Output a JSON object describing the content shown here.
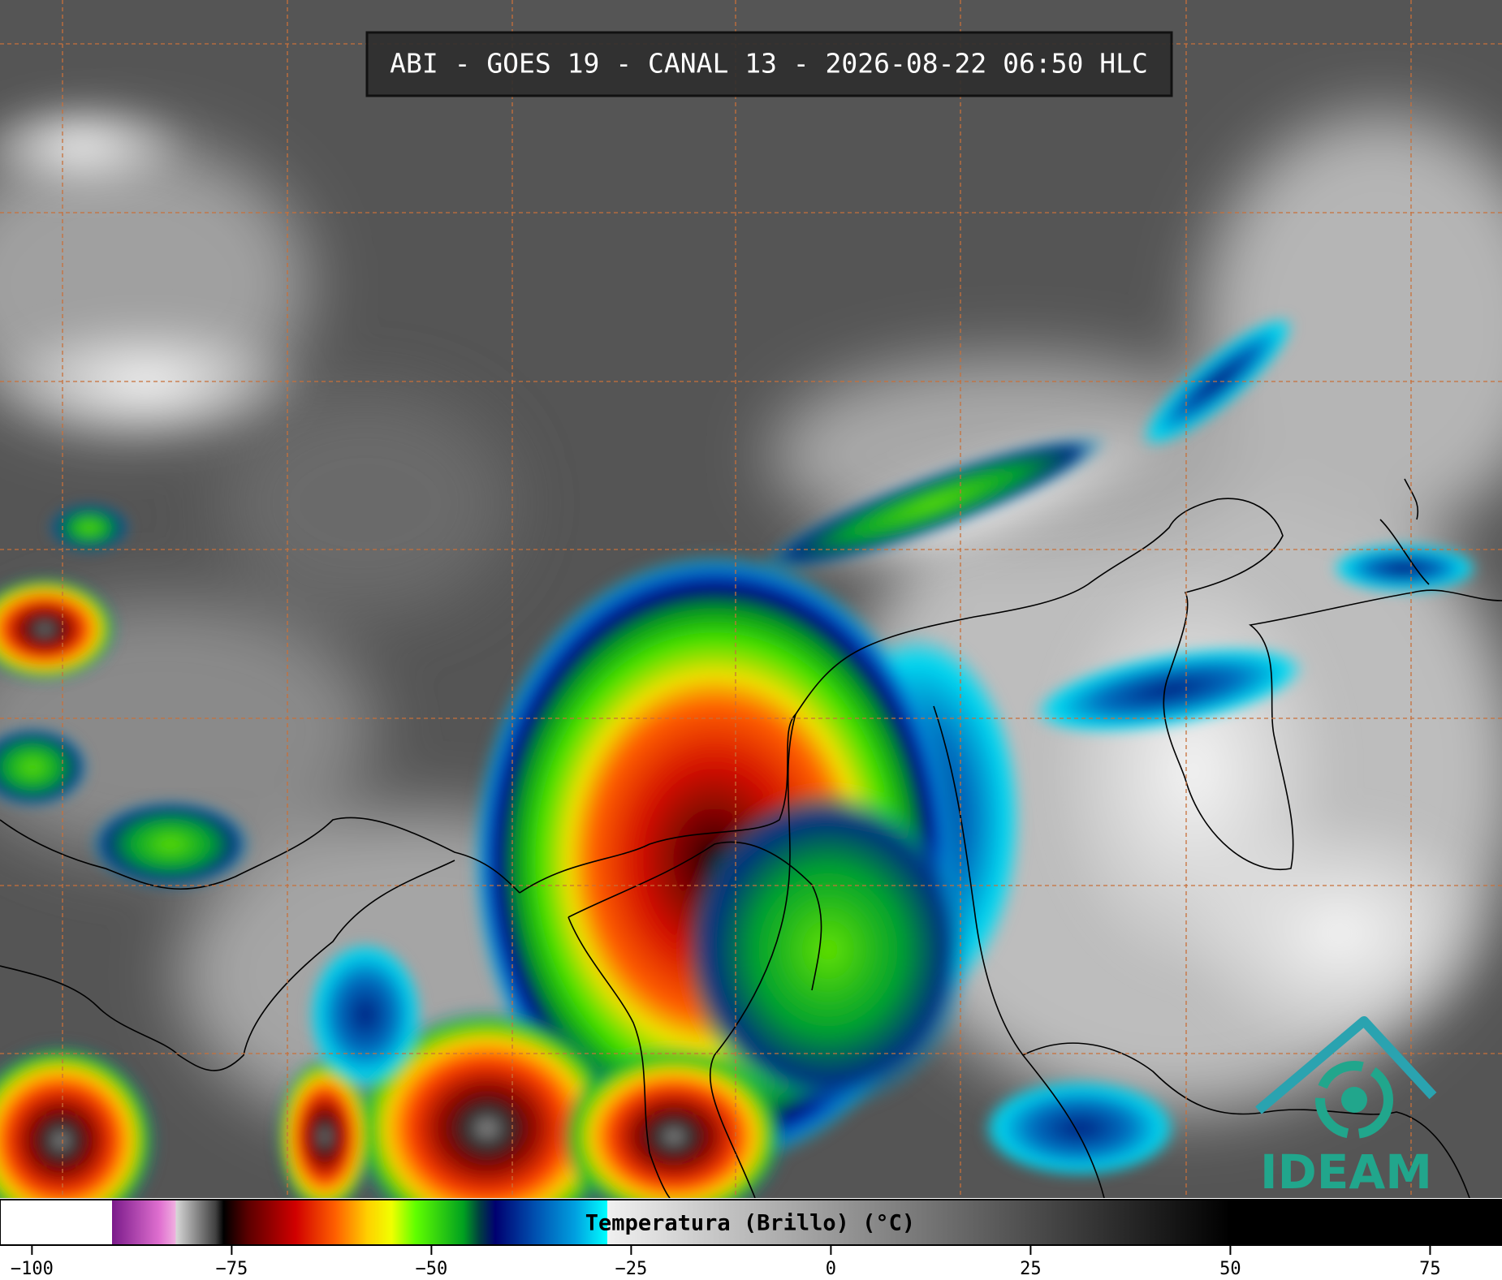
{
  "header": {
    "title": "ABI - GOES 19 - CANAL 13 - 2026-08-22 06:50 HLC"
  },
  "colorbar": {
    "label": "Temperatura (Brillo) (°C)",
    "clim": [
      -104,
      84
    ],
    "ticks": [
      {
        "value": -100,
        "label": "−100"
      },
      {
        "value": -75,
        "label": "−75"
      },
      {
        "value": -50,
        "label": "−50"
      },
      {
        "value": -25,
        "label": "−25"
      },
      0,
      25,
      50,
      75
    ],
    "colormap": [
      [
        -104,
        "#ffffff"
      ],
      [
        -90,
        "#ffffff"
      ],
      [
        -90,
        "#7a1a8a"
      ],
      [
        -84,
        "#e070d0"
      ],
      [
        -82,
        "#f0b0e0"
      ],
      [
        -82,
        "#d8d8d8"
      ],
      [
        -77,
        "#404040"
      ],
      [
        -76,
        "#000000"
      ],
      [
        -73,
        "#5a0000"
      ],
      [
        -67,
        "#d00000"
      ],
      [
        -62,
        "#ff6000"
      ],
      [
        -58,
        "#ffd000"
      ],
      [
        -55,
        "#f0ff00"
      ],
      [
        -52,
        "#60ff00"
      ],
      [
        -46,
        "#00a020"
      ],
      [
        -44,
        "#004040"
      ],
      [
        -42,
        "#000070"
      ],
      [
        -37,
        "#0050b0"
      ],
      [
        -32,
        "#00a0e0"
      ],
      [
        -28,
        "#00ffff"
      ],
      [
        -28,
        "#f0f0f0"
      ],
      [
        50,
        "#000000"
      ],
      [
        84,
        "#000000"
      ]
    ]
  },
  "logo": {
    "text": "IDEAM"
  }
}
